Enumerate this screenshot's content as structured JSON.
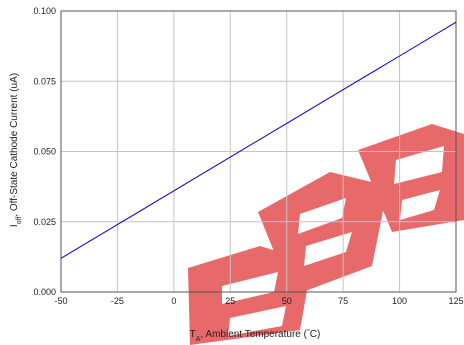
{
  "chart_data": {
    "type": "line",
    "title": "",
    "xlabel": {
      "parts": [
        "T",
        "A",
        ",  Ambient  Temperature (",
        "°",
        "C)"
      ],
      "text": "TA,  Ambient  Temperature (°C)"
    },
    "ylabel": {
      "parts": [
        "I",
        "off",
        ",  Off-State Cathode Current  (uA)"
      ],
      "text": "Ioff,  Off-State Cathode Current  (uA)"
    },
    "xlim": [
      -50,
      125
    ],
    "ylim": [
      0,
      0.1
    ],
    "xticks": [
      -50,
      -25,
      0,
      25,
      50,
      75,
      100,
      125
    ],
    "xtick_labels": [
      "-50",
      "-25",
      "0",
      "25",
      "50",
      "75",
      "100",
      "125"
    ],
    "yticks": [
      0,
      0.025,
      0.05,
      0.075,
      0.1
    ],
    "ytick_labels": [
      "0.000",
      "0.025",
      "0.050",
      "0.075",
      "0.100"
    ],
    "grid": true,
    "series": [
      {
        "x": [
          -50,
          -25,
          0,
          25,
          50,
          75,
          100,
          125
        ],
        "y": [
          0.012,
          0.024,
          0.036,
          0.048,
          0.06,
          0.072,
          0.084,
          0.096
        ],
        "color": "#0000cc"
      }
    ],
    "watermark_text": "3EP",
    "watermark_color": "#e03030"
  }
}
